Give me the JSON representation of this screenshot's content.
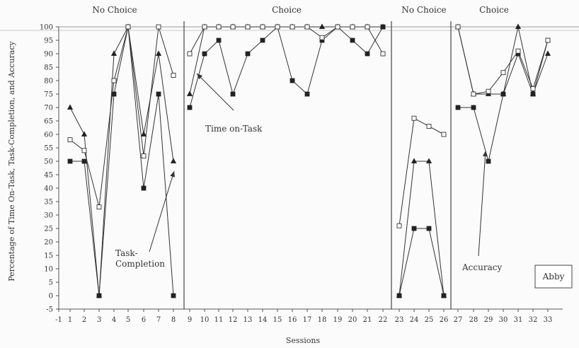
{
  "chart_data": {
    "type": "line",
    "xlabel": "Sessions",
    "ylabel": "Percentage of Time On-Task, Task-Completion, and Accuracy",
    "x_ticks": [
      -1,
      1,
      2,
      3,
      4,
      5,
      6,
      7,
      8,
      9,
      10,
      11,
      12,
      13,
      14,
      15,
      16,
      17,
      18,
      19,
      20,
      21,
      22,
      23,
      24,
      25,
      26,
      27,
      28,
      29,
      30,
      31,
      32,
      33
    ],
    "ylim": [
      -5,
      100
    ],
    "y_ticks": [
      -5,
      0,
      5,
      10,
      15,
      20,
      25,
      30,
      35,
      40,
      45,
      50,
      55,
      60,
      65,
      70,
      75,
      80,
      85,
      90,
      95,
      100
    ],
    "phases": [
      {
        "label": "No Choice",
        "sessions": [
          1,
          8
        ]
      },
      {
        "label": "Choice",
        "sessions": [
          9,
          22
        ]
      },
      {
        "label": "No Choice",
        "sessions": [
          23,
          26
        ]
      },
      {
        "label": "Choice",
        "sessions": [
          27,
          33
        ]
      }
    ],
    "series": [
      {
        "marker": "square-filled",
        "segments": [
          {
            "x": [
              1,
              2,
              3,
              4,
              5,
              6,
              7,
              8
            ],
            "y": [
              50,
              50,
              0,
              75,
              100,
              40,
              75,
              0
            ]
          },
          {
            "x": [
              9,
              10,
              11,
              12,
              13,
              14,
              15,
              16,
              17,
              18,
              19,
              20,
              21,
              22
            ],
            "y": [
              70,
              90,
              95,
              75,
              90,
              95,
              100,
              80,
              75,
              95,
              100,
              95,
              90,
              100
            ]
          },
          {
            "x": [
              23,
              24,
              25,
              26
            ],
            "y": [
              0,
              25,
              25,
              0
            ]
          },
          {
            "x": [
              27,
              28,
              29,
              30,
              31,
              32,
              33
            ],
            "y": [
              70,
              70,
              50,
              75,
              90,
              75,
              95
            ]
          }
        ]
      },
      {
        "marker": "triangle-filled",
        "segments": [
          {
            "x": [
              1,
              2,
              3,
              4,
              5,
              6,
              7,
              8
            ],
            "y": [
              70,
              60,
              0,
              90,
              100,
              60,
              90,
              50
            ]
          },
          {
            "x": [
              9,
              10,
              11,
              12,
              13,
              14,
              15,
              16,
              17,
              18,
              19,
              20,
              21,
              22
            ],
            "y": [
              75,
              100,
              100,
              100,
              100,
              100,
              100,
              100,
              100,
              100,
              100,
              100,
              100,
              100
            ]
          },
          {
            "x": [
              23,
              24,
              25,
              26
            ],
            "y": [
              0,
              50,
              50,
              0
            ]
          },
          {
            "x": [
              27,
              28,
              29,
              30,
              31,
              32,
              33
            ],
            "y": [
              100,
              75,
              75,
              75,
              100,
              75,
              90
            ]
          }
        ]
      },
      {
        "marker": "square-open",
        "segments": [
          {
            "x": [
              1,
              2,
              3,
              4,
              5,
              6,
              7,
              8
            ],
            "y": [
              58,
              54,
              33,
              80,
              100,
              52,
              100,
              82
            ]
          },
          {
            "x": [
              9,
              10,
              11,
              12,
              13,
              14,
              15,
              16,
              17,
              18,
              19,
              20,
              21,
              22
            ],
            "y": [
              90,
              100,
              100,
              100,
              100,
              100,
              100,
              100,
              100,
              96,
              100,
              100,
              100,
              90
            ]
          },
          {
            "x": [
              23,
              24,
              25,
              26
            ],
            "y": [
              26,
              66,
              63,
              60
            ]
          },
          {
            "x": [
              27,
              28,
              29,
              30,
              31,
              32,
              33
            ],
            "y": [
              100,
              75,
              76,
              83,
              91,
              77,
              95
            ]
          }
        ]
      }
    ],
    "annotations": [
      {
        "lines": [
          "Time on-Task"
        ]
      },
      {
        "lines": [
          "Task-",
          "Completion"
        ]
      },
      {
        "lines": [
          "Accuracy"
        ]
      }
    ],
    "participant": "Abby"
  }
}
